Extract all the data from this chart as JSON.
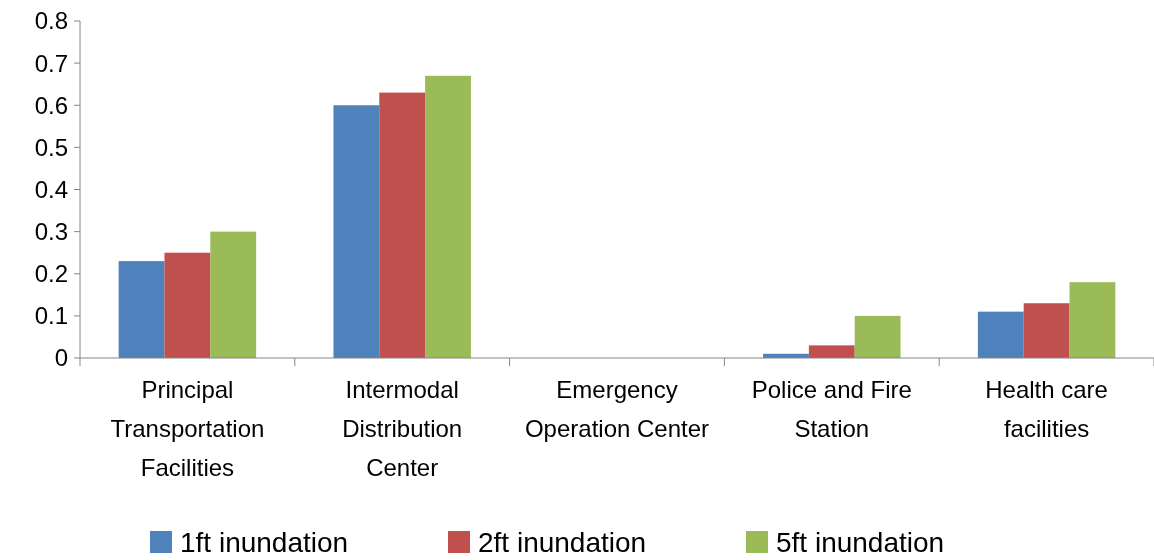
{
  "chart_data": {
    "type": "bar",
    "categories": [
      "Principal Transportation Facilities",
      "Intermodal Distribution Center",
      "Emergency Operation Center",
      "Police and Fire Station",
      "Health care facilities"
    ],
    "series": [
      {
        "name": "1ft inundation",
        "color": "#4f81bd",
        "values": [
          0.23,
          0.6,
          0,
          0.01,
          0.11
        ]
      },
      {
        "name": "2ft inundation",
        "color": "#c0504d",
        "values": [
          0.25,
          0.63,
          0,
          0.03,
          0.13
        ]
      },
      {
        "name": "5ft inundation",
        "color": "#9bbb59",
        "values": [
          0.3,
          0.67,
          0,
          0.1,
          0.18
        ]
      }
    ],
    "ylim": [
      0,
      0.8
    ],
    "yticks": [
      0,
      0.1,
      0.2,
      0.3,
      0.4,
      0.5,
      0.6,
      0.7,
      0.8
    ],
    "grid": false,
    "legend": "bottom"
  }
}
